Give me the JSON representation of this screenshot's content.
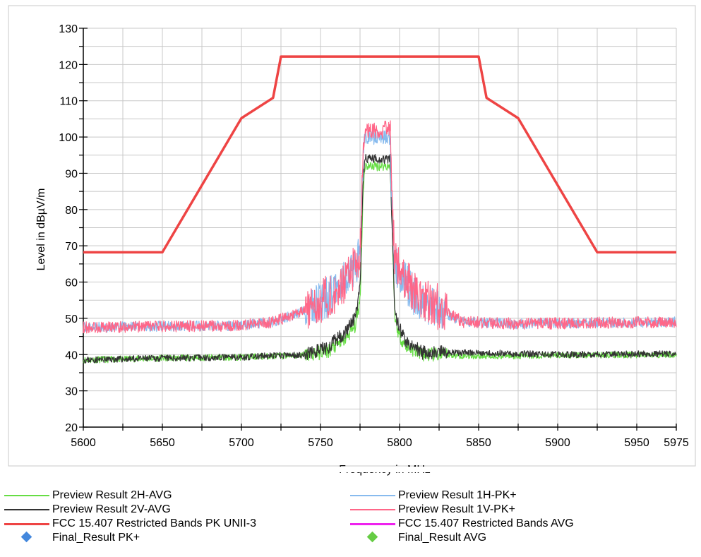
{
  "chart_data": {
    "type": "line",
    "xlabel": "Frequency in MHz",
    "ylabel": "Level in dBµV/m",
    "xlim": [
      5600,
      5975
    ],
    "ylim": [
      20,
      130
    ],
    "x_ticks": [
      5600,
      5650,
      5700,
      5750,
      5800,
      5850,
      5900,
      5950,
      5975
    ],
    "y_ticks": [
      20,
      30,
      40,
      50,
      60,
      70,
      80,
      90,
      100,
      110,
      120,
      130
    ],
    "grid": true,
    "legend_position": "bottom",
    "series": [
      {
        "name": "Preview Result 2H-AVG",
        "color": "#66dd44",
        "points": [
          [
            5600,
            38.5
          ],
          [
            5650,
            39
          ],
          [
            5700,
            39.3
          ],
          [
            5740,
            39.8
          ],
          [
            5755,
            41
          ],
          [
            5765,
            44
          ],
          [
            5772,
            48
          ],
          [
            5775,
            55
          ],
          [
            5777,
            85
          ],
          [
            5778,
            92
          ],
          [
            5794,
            92
          ],
          [
            5795,
            80
          ],
          [
            5797,
            50
          ],
          [
            5800,
            45
          ],
          [
            5805,
            42
          ],
          [
            5815,
            40
          ],
          [
            5850,
            39.6
          ],
          [
            5900,
            39.8
          ],
          [
            5975,
            40
          ]
        ]
      },
      {
        "name": "Preview Result 2V-AVG",
        "color": "#333333",
        "points": [
          [
            5600,
            38.5
          ],
          [
            5650,
            39
          ],
          [
            5700,
            39.3
          ],
          [
            5740,
            40
          ],
          [
            5755,
            42
          ],
          [
            5765,
            46
          ],
          [
            5772,
            50
          ],
          [
            5775,
            58
          ],
          [
            5777,
            88
          ],
          [
            5778,
            94
          ],
          [
            5794,
            94
          ],
          [
            5795,
            80
          ],
          [
            5797,
            52
          ],
          [
            5800,
            47
          ],
          [
            5805,
            43
          ],
          [
            5815,
            40.5
          ],
          [
            5850,
            40.5
          ],
          [
            5900,
            40
          ],
          [
            5975,
            40.2
          ]
        ]
      },
      {
        "name": "Preview Result 1H-PK+",
        "color": "#88bbee",
        "points": [
          [
            5600,
            47.5
          ],
          [
            5650,
            47.8
          ],
          [
            5700,
            48
          ],
          [
            5720,
            49
          ],
          [
            5740,
            52
          ],
          [
            5755,
            56
          ],
          [
            5765,
            60
          ],
          [
            5772,
            64
          ],
          [
            5775,
            68
          ],
          [
            5777,
            95
          ],
          [
            5778,
            100
          ],
          [
            5794,
            100
          ],
          [
            5795,
            85
          ],
          [
            5797,
            65
          ],
          [
            5800,
            62
          ],
          [
            5810,
            56
          ],
          [
            5825,
            52
          ],
          [
            5840,
            49
          ],
          [
            5875,
            48.5
          ],
          [
            5975,
            49
          ]
        ]
      },
      {
        "name": "Preview Result 1V-PK+",
        "color": "#ff6688",
        "points": [
          [
            5600,
            47.5
          ],
          [
            5650,
            47.8
          ],
          [
            5700,
            48
          ],
          [
            5720,
            49
          ],
          [
            5740,
            52
          ],
          [
            5755,
            56
          ],
          [
            5765,
            60
          ],
          [
            5772,
            64
          ],
          [
            5775,
            68
          ],
          [
            5777,
            97
          ],
          [
            5778,
            102
          ],
          [
            5794,
            102
          ],
          [
            5795,
            86
          ],
          [
            5797,
            66
          ],
          [
            5800,
            63
          ],
          [
            5810,
            57
          ],
          [
            5825,
            53
          ],
          [
            5840,
            49
          ],
          [
            5875,
            48.5
          ],
          [
            5975,
            49
          ]
        ]
      },
      {
        "name": "FCC 15.407 Restricted Bands PK UNII-3",
        "color": "#ee4444",
        "points": [
          [
            5600,
            68.2
          ],
          [
            5650,
            68.2
          ],
          [
            5700,
            105.2
          ],
          [
            5720,
            110.8
          ],
          [
            5725,
            122.2
          ],
          [
            5850,
            122.2
          ],
          [
            5855,
            110.8
          ],
          [
            5875,
            105.2
          ],
          [
            5925,
            68.2
          ],
          [
            5975,
            68.2
          ]
        ]
      },
      {
        "name": "FCC 15.407 Restricted Bands AVG",
        "color": "#ee22ee",
        "points": []
      },
      {
        "name": "Final_Result PK+",
        "color": "#4488dd",
        "marker": "diamond",
        "points": []
      },
      {
        "name": "Final_Result AVG",
        "color": "#66cc44",
        "marker": "diamond",
        "points": []
      }
    ]
  },
  "legend": {
    "items": [
      {
        "label": "Preview Result 2H-AVG",
        "color": "#66dd44",
        "style": "thin-line"
      },
      {
        "label": "Preview Result 1H-PK+",
        "color": "#88bbee",
        "style": "thin-line"
      },
      {
        "label": "Preview Result 2V-AVG",
        "color": "#333333",
        "style": "thin-line"
      },
      {
        "label": "Preview Result 1V-PK+",
        "color": "#ff6688",
        "style": "thin-line"
      },
      {
        "label": "FCC 15.407 Restricted Bands PK UNII-3",
        "color": "#ee4444",
        "style": "thick-line"
      },
      {
        "label": "FCC 15.407 Restricted Bands AVG",
        "color": "#ee22ee",
        "style": "thick-line"
      },
      {
        "label": "Final_Result PK+",
        "color": "#4488dd",
        "style": "diamond"
      },
      {
        "label": "Final_Result AVG",
        "color": "#66cc44",
        "style": "diamond"
      }
    ]
  }
}
